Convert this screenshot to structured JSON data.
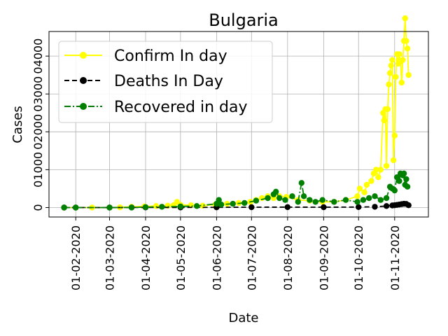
{
  "chart_data": {
    "type": "line",
    "title": "Bulgaria",
    "xlabel": "Date",
    "ylabel": "Cases",
    "xlim": [
      "2020-01-09",
      "2020-11-30"
    ],
    "ylim": [
      -250,
      4650
    ],
    "grid": true,
    "legend_position": "top-left",
    "x_ticks": [
      {
        "date": "2020-02-01",
        "label": "01-02-2020"
      },
      {
        "date": "2020-03-01",
        "label": "01-03-2020"
      },
      {
        "date": "2020-04-01",
        "label": "01-04-2020"
      },
      {
        "date": "2020-05-01",
        "label": "01-05-2020"
      },
      {
        "date": "2020-06-01",
        "label": "01-06-2020"
      },
      {
        "date": "2020-07-01",
        "label": "01-07-2020"
      },
      {
        "date": "2020-08-01",
        "label": "01-08-2020"
      },
      {
        "date": "2020-09-01",
        "label": "01-09-2020"
      },
      {
        "date": "2020-10-01",
        "label": "01-10-2020"
      },
      {
        "date": "2020-11-01",
        "label": "01-11-2020"
      }
    ],
    "y_ticks": [
      {
        "value": 0,
        "label": "0"
      },
      {
        "value": 1000,
        "label": "01000"
      },
      {
        "value": 2000,
        "label": "02000"
      },
      {
        "value": 3000,
        "label": "03000"
      },
      {
        "value": 4000,
        "label": "04000"
      }
    ],
    "series": [
      {
        "name": "Confirm In day",
        "color": "#ffff00",
        "linestyle": "solid",
        "points": [
          [
            "2020-01-22",
            0
          ],
          [
            "2020-02-01",
            0
          ],
          [
            "2020-02-15",
            0
          ],
          [
            "2020-03-01",
            0
          ],
          [
            "2020-03-10",
            5
          ],
          [
            "2020-03-20",
            20
          ],
          [
            "2020-03-31",
            30
          ],
          [
            "2020-04-10",
            40
          ],
          [
            "2020-04-20",
            50
          ],
          [
            "2020-04-25",
            60
          ],
          [
            "2020-04-28",
            150
          ],
          [
            "2020-05-01",
            70
          ],
          [
            "2020-05-10",
            60
          ],
          [
            "2020-05-20",
            50
          ],
          [
            "2020-05-31",
            80
          ],
          [
            "2020-06-10",
            100
          ],
          [
            "2020-06-20",
            120
          ],
          [
            "2020-06-30",
            150
          ],
          [
            "2020-07-05",
            200
          ],
          [
            "2020-07-10",
            250
          ],
          [
            "2020-07-15",
            300
          ],
          [
            "2020-07-20",
            250
          ],
          [
            "2020-07-25",
            300
          ],
          [
            "2020-07-31",
            280
          ],
          [
            "2020-08-10",
            200
          ],
          [
            "2020-08-20",
            180
          ],
          [
            "2020-08-31",
            150
          ],
          [
            "2020-09-10",
            150
          ],
          [
            "2020-09-20",
            200
          ],
          [
            "2020-09-30",
            300
          ],
          [
            "2020-10-02",
            500
          ],
          [
            "2020-10-06",
            400
          ],
          [
            "2020-10-08",
            600
          ],
          [
            "2020-10-12",
            700
          ],
          [
            "2020-10-14",
            900
          ],
          [
            "2020-10-16",
            1000
          ],
          [
            "2020-10-18",
            800
          ],
          [
            "2020-10-20",
            1000
          ],
          [
            "2020-10-22",
            2500
          ],
          [
            "2020-10-23",
            2300
          ],
          [
            "2020-10-24",
            2600
          ],
          [
            "2020-10-25",
            1100
          ],
          [
            "2020-10-26",
            2600
          ],
          [
            "2020-10-27",
            3250
          ],
          [
            "2020-10-28",
            3550
          ],
          [
            "2020-10-29",
            3750
          ],
          [
            "2020-10-30",
            3900
          ],
          [
            "2020-10-31",
            1250
          ],
          [
            "2020-11-01",
            1900
          ],
          [
            "2020-11-02",
            3450
          ],
          [
            "2020-11-03",
            4050
          ],
          [
            "2020-11-04",
            3800
          ],
          [
            "2020-11-05",
            4050
          ],
          [
            "2020-11-06",
            3850
          ],
          [
            "2020-11-07",
            3300
          ],
          [
            "2020-11-08",
            3900
          ],
          [
            "2020-11-09",
            4400
          ],
          [
            "2020-11-10",
            5000
          ],
          [
            "2020-11-11",
            4400
          ],
          [
            "2020-11-12",
            4200
          ],
          [
            "2020-11-13",
            3500
          ]
        ]
      },
      {
        "name": "Deaths In Day",
        "color": "#000000",
        "linestyle": "dashed",
        "points": [
          [
            "2020-01-22",
            0
          ],
          [
            "2020-02-01",
            0
          ],
          [
            "2020-03-01",
            0
          ],
          [
            "2020-03-20",
            1
          ],
          [
            "2020-04-01",
            3
          ],
          [
            "2020-05-01",
            4
          ],
          [
            "2020-06-01",
            5
          ],
          [
            "2020-07-01",
            8
          ],
          [
            "2020-08-01",
            10
          ],
          [
            "2020-09-01",
            8
          ],
          [
            "2020-10-01",
            12
          ],
          [
            "2020-10-15",
            20
          ],
          [
            "2020-10-25",
            40
          ],
          [
            "2020-10-30",
            55
          ],
          [
            "2020-11-01",
            60
          ],
          [
            "2020-11-03",
            70
          ],
          [
            "2020-11-05",
            80
          ],
          [
            "2020-11-07",
            90
          ],
          [
            "2020-11-09",
            100
          ],
          [
            "2020-11-11",
            95
          ],
          [
            "2020-11-13",
            60
          ]
        ]
      },
      {
        "name": "Recovered in day",
        "color": "#008000",
        "linestyle": "dashdot",
        "points": [
          [
            "2020-01-22",
            0
          ],
          [
            "2020-02-01",
            0
          ],
          [
            "2020-03-01",
            0
          ],
          [
            "2020-03-20",
            2
          ],
          [
            "2020-04-01",
            10
          ],
          [
            "2020-04-15",
            20
          ],
          [
            "2020-05-01",
            30
          ],
          [
            "2020-05-15",
            40
          ],
          [
            "2020-06-01",
            100
          ],
          [
            "2020-06-03",
            200
          ],
          [
            "2020-06-05",
            80
          ],
          [
            "2020-06-15",
            100
          ],
          [
            "2020-06-25",
            120
          ],
          [
            "2020-07-05",
            180
          ],
          [
            "2020-07-15",
            250
          ],
          [
            "2020-07-20",
            350
          ],
          [
            "2020-07-22",
            420
          ],
          [
            "2020-07-25",
            250
          ],
          [
            "2020-07-30",
            200
          ],
          [
            "2020-08-05",
            300
          ],
          [
            "2020-08-10",
            150
          ],
          [
            "2020-08-13",
            650
          ],
          [
            "2020-08-15",
            300
          ],
          [
            "2020-08-20",
            200
          ],
          [
            "2020-08-25",
            150
          ],
          [
            "2020-08-31",
            200
          ],
          [
            "2020-09-10",
            150
          ],
          [
            "2020-09-20",
            200
          ],
          [
            "2020-09-30",
            150
          ],
          [
            "2020-10-05",
            200
          ],
          [
            "2020-10-10",
            250
          ],
          [
            "2020-10-15",
            300
          ],
          [
            "2020-10-20",
            200
          ],
          [
            "2020-10-25",
            250
          ],
          [
            "2020-10-28",
            550
          ],
          [
            "2020-10-30",
            500
          ],
          [
            "2020-11-01",
            450
          ],
          [
            "2020-11-03",
            800
          ],
          [
            "2020-11-05",
            700
          ],
          [
            "2020-11-06",
            900
          ],
          [
            "2020-11-08",
            850
          ],
          [
            "2020-11-09",
            900
          ],
          [
            "2020-11-10",
            600
          ],
          [
            "2020-11-11",
            750
          ],
          [
            "2020-11-12",
            550
          ]
        ]
      }
    ]
  }
}
